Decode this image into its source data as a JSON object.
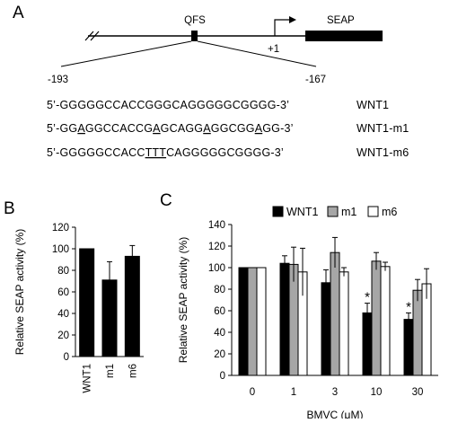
{
  "panel_a": {
    "letter": "A",
    "qfs_label": "QFS",
    "seap_label": "SEAP",
    "tss_label": "+1",
    "pos_start": "-193",
    "pos_end": "-167",
    "sequences": [
      {
        "name": "WNT1",
        "prefix": "5’-",
        "segments": [
          [
            "GGGGGCCACCGGGCAGGGGGCGGGG",
            false
          ],
          [
            "-3’",
            false
          ]
        ]
      },
      {
        "name": "WNT1-m1",
        "prefix": "5’-",
        "segments": [
          [
            "GG",
            false
          ],
          [
            "A",
            true
          ],
          [
            "GGCCACCG",
            false
          ],
          [
            "A",
            true
          ],
          [
            "GCAGG",
            false
          ],
          [
            "A",
            true
          ],
          [
            "GGCGG",
            false
          ],
          [
            "A",
            true
          ],
          [
            "GG",
            false
          ],
          [
            "-3’",
            false
          ]
        ]
      },
      {
        "name": "WNT1-m6",
        "prefix": "5’-",
        "segments": [
          [
            "GGGGGCCACC",
            false
          ],
          [
            "TTT",
            true
          ],
          [
            "CAGGGGGCGGGG",
            false
          ],
          [
            "-3’",
            false
          ]
        ]
      }
    ]
  },
  "chart_data": [
    {
      "type": "bar",
      "panel": "B",
      "categories": [
        "WNT1",
        "m1",
        "m6"
      ],
      "values": [
        100,
        71,
        93
      ],
      "errors": [
        0,
        17,
        10
      ],
      "ylabel": "Relative SEAP activity (%)",
      "ylim": [
        0,
        120
      ],
      "yticks": [
        0,
        20,
        40,
        60,
        80,
        100,
        120
      ],
      "colors": [
        "#000000",
        "#000000",
        "#000000"
      ]
    },
    {
      "type": "bar",
      "panel": "C",
      "categories": [
        "0",
        "1",
        "3",
        "10",
        "30"
      ],
      "xlabel": "BMVC (μM)",
      "ylabel": "Relative SEAP activity (%)",
      "ylim": [
        0,
        140
      ],
      "yticks": [
        0,
        20,
        40,
        60,
        80,
        100,
        120,
        140
      ],
      "legend_position": "top",
      "series": [
        {
          "name": "WNT1",
          "color": "#000000",
          "values": [
            100,
            104,
            86,
            58,
            52
          ],
          "errors": [
            0,
            7,
            12,
            9,
            6
          ],
          "significant": [
            false,
            false,
            false,
            true,
            true
          ]
        },
        {
          "name": "m1",
          "color": "#a6a6a6",
          "values": [
            100,
            103,
            114,
            106,
            79
          ],
          "errors": [
            0,
            16,
            14,
            8,
            10
          ],
          "significant": [
            false,
            false,
            false,
            false,
            false
          ]
        },
        {
          "name": "m6",
          "color": "#ffffff",
          "values": [
            100,
            96,
            96,
            101,
            85
          ],
          "errors": [
            0,
            22,
            4,
            4,
            14
          ],
          "significant": [
            false,
            false,
            false,
            false,
            false
          ]
        }
      ],
      "significance_mark": "*"
    }
  ]
}
